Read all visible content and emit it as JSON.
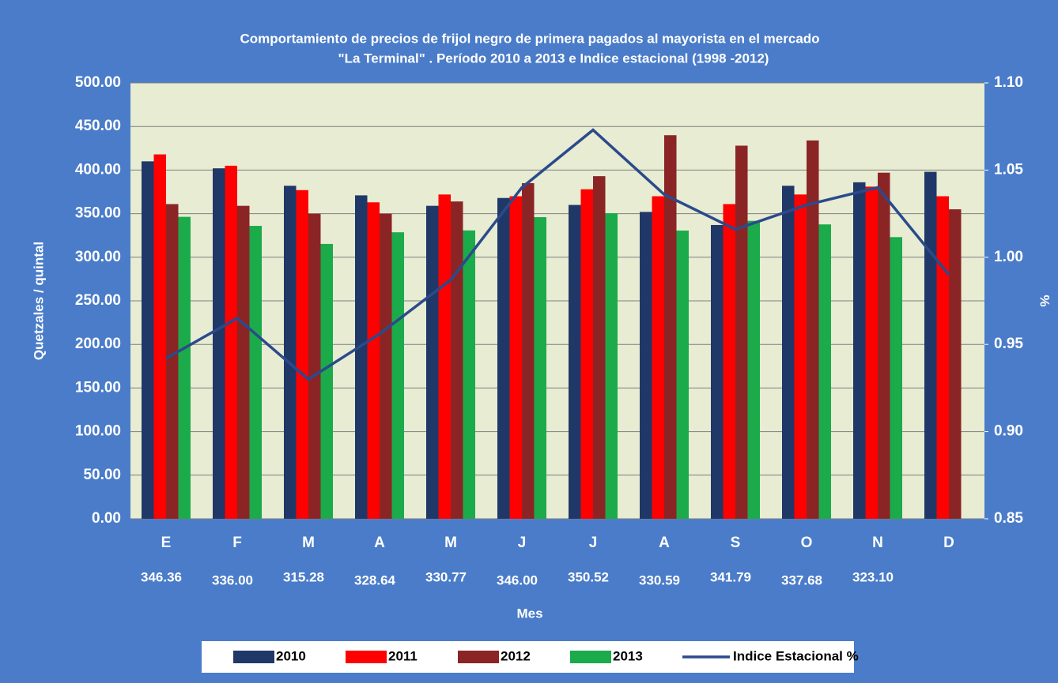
{
  "chart_data": {
    "type": "bar",
    "title": [
      "Comportamiento de precios de frijol negro de primera  pagados al mayorista  en el mercado",
      "\"La Terminal\" . Período 2010 a 2013   e  Indice estacional (1998 -2012)"
    ],
    "y_label": "Quetzales / quintal",
    "y2_label": "%",
    "x_label": "Mes",
    "categories": [
      "E",
      "F",
      "M",
      "A",
      "M",
      "J",
      "J",
      "A",
      "S",
      "O",
      "N",
      "D"
    ],
    "series": [
      {
        "name": "2010",
        "color": "#1f3868",
        "values": [
          410,
          402,
          382,
          371,
          359,
          368,
          360,
          352,
          337,
          382,
          386,
          398
        ]
      },
      {
        "name": "2011",
        "color": "#ff0000",
        "values": [
          418,
          405,
          377,
          363,
          372,
          370,
          378,
          370,
          361,
          372,
          381,
          370
        ]
      },
      {
        "name": "2012",
        "color": "#8b2525",
        "values": [
          361,
          359,
          350,
          350,
          364,
          385,
          393,
          440,
          428,
          434,
          397,
          355
        ]
      },
      {
        "name": "2013",
        "color": "#1bab4b",
        "values": [
          346.36,
          336.0,
          315.28,
          328.64,
          330.77,
          346.0,
          350.52,
          330.59,
          341.79,
          337.68,
          323.1,
          null
        ],
        "value_labels": [
          "346.36",
          "336.00",
          "315.28",
          "328.64",
          "330.77",
          "346.00",
          "350.52",
          "330.59",
          "341.79",
          "337.68",
          "323.10",
          null
        ]
      },
      {
        "name": "Indice Estacional %",
        "color": "#2b4a8c",
        "type": "line",
        "axis": "y2",
        "values": [
          0.942,
          0.965,
          0.93,
          0.956,
          0.987,
          1.04,
          1.073,
          1.036,
          1.016,
          1.03,
          1.04,
          0.99
        ]
      }
    ],
    "ylim": [
      0,
      500
    ],
    "yticks": [
      {
        "value": 0,
        "label": "0.00"
      },
      {
        "value": 50,
        "label": "50.00"
      },
      {
        "value": 100,
        "label": "100.00"
      },
      {
        "value": 150,
        "label": "150.00"
      },
      {
        "value": 200,
        "label": "200.00"
      },
      {
        "value": 250,
        "label": "250.00"
      },
      {
        "value": 300,
        "label": "300.00"
      },
      {
        "value": 350,
        "label": "350.00"
      },
      {
        "value": 400,
        "label": "400.00"
      },
      {
        "value": 450,
        "label": "450.00"
      },
      {
        "value": 500,
        "label": "500.00"
      }
    ],
    "y2lim": [
      0.85,
      1.1
    ],
    "y2ticks": [
      0.85,
      {
        "value": 0.9,
        "label": "0.90"
      },
      0.95,
      {
        "value": 1.0,
        "label": "1.00"
      },
      1.05,
      {
        "value": 1.1,
        "label": "1.10"
      }
    ],
    "grid": true,
    "legend": "bottom"
  }
}
